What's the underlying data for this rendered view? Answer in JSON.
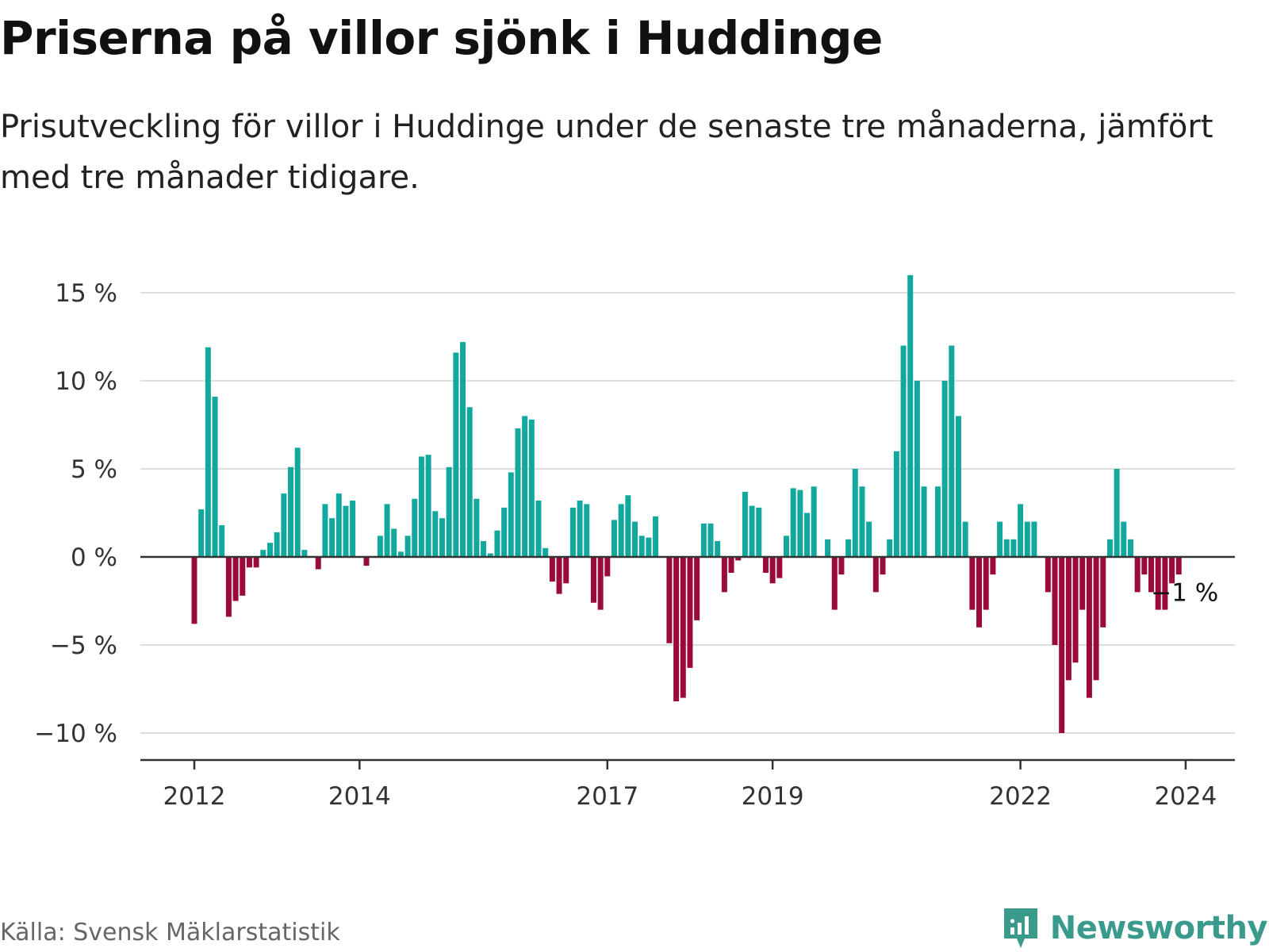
{
  "header": {
    "title": "Priserna på villor sjönk i Huddinge",
    "subtitle": "Prisutveckling för villor i Huddinge under de senaste tre månaderna, jämfört med tre månader tidigare."
  },
  "footer": {
    "source": "Källa: Svensk Mäklarstatistik",
    "brand": "Newsworthy"
  },
  "colors": {
    "positive": "#13a89e",
    "negative": "#9b0a3c",
    "grid": "#dddddd",
    "axis": "#333333",
    "brand": "#3a9a8c"
  },
  "chart_data": {
    "type": "bar",
    "title": "Priserna på villor sjönk i Huddinge",
    "xlabel": "",
    "ylabel": "",
    "ylim": [
      -11.5,
      15.5
    ],
    "yticks": [
      {
        "value": 15,
        "label": "15 %"
      },
      {
        "value": 10,
        "label": "10 %"
      },
      {
        "value": 5,
        "label": "5 %"
      },
      {
        "value": 0,
        "label": "0 %"
      },
      {
        "value": -5,
        "label": "−5 %"
      },
      {
        "value": -10,
        "label": "−10 %"
      }
    ],
    "xticks": [
      {
        "index": 0,
        "label": "2012"
      },
      {
        "index": 24,
        "label": "2014"
      },
      {
        "index": 60,
        "label": "2017"
      },
      {
        "index": 84,
        "label": "2019"
      },
      {
        "index": 120,
        "label": "2022"
      },
      {
        "index": 144,
        "label": "2024"
      }
    ],
    "period_start": "2012-01",
    "last_value_label": "−1 %",
    "values": [
      -3.8,
      2.7,
      11.9,
      9.1,
      1.8,
      -3.4,
      -2.5,
      -2.2,
      -0.6,
      -0.6,
      0.4,
      0.8,
      1.4,
      3.6,
      5.1,
      6.2,
      0.4,
      0.0,
      -0.7,
      3.0,
      2.2,
      3.6,
      2.9,
      3.2,
      0.0,
      -0.5,
      0.0,
      1.2,
      3.0,
      1.6,
      0.3,
      1.2,
      3.3,
      5.7,
      5.8,
      2.6,
      2.2,
      5.1,
      11.6,
      12.2,
      8.5,
      3.3,
      0.9,
      0.2,
      1.5,
      2.8,
      4.8,
      7.3,
      8.0,
      7.8,
      3.2,
      0.5,
      -1.4,
      -2.1,
      -1.5,
      2.8,
      3.2,
      3.0,
      -2.6,
      -3.0,
      -1.1,
      2.1,
      3.0,
      3.5,
      2.0,
      1.2,
      1.1,
      2.3,
      0.0,
      -4.9,
      -8.2,
      -8.0,
      -6.3,
      -3.6,
      1.9,
      1.9,
      0.9,
      -2.0,
      -0.9,
      -0.2,
      3.7,
      2.9,
      2.8,
      -0.9,
      -1.5,
      -1.2,
      1.2,
      3.9,
      3.8,
      2.5,
      4.0,
      0.0,
      1.0,
      -3.0,
      -1.0,
      1.0,
      5.0,
      4.0,
      2.0,
      -2.0,
      -1.0,
      1.0,
      6.0,
      12.0,
      16.0,
      10.0,
      4.0,
      0.0,
      4.0,
      10.0,
      12.0,
      8.0,
      2.0,
      -3.0,
      -4.0,
      -3.0,
      -1.0,
      2.0,
      1.0,
      1.0,
      3.0,
      2.0,
      2.0,
      0.0,
      -2.0,
      -5.0,
      -10.0,
      -7.0,
      -6.0,
      -3.0,
      -8.0,
      -7.0,
      -4.0,
      1.0,
      5.0,
      2.0,
      1.0,
      -2.0,
      -1.0,
      -2.0,
      -3.0,
      -3.0,
      -1.5,
      -1.0
    ]
  }
}
